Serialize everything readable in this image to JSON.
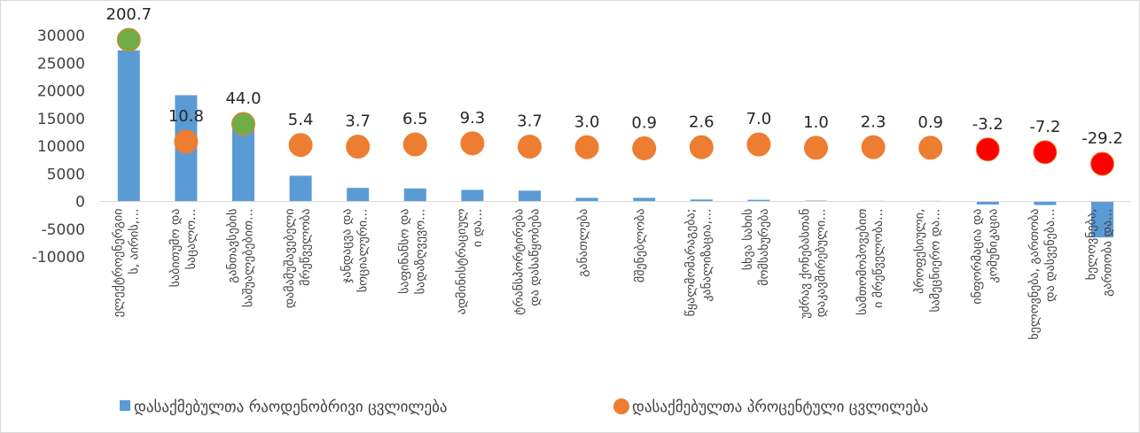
{
  "chart_data": {
    "type": "bar",
    "categories": [
      [
        "ელექტროენერგიი",
        "ს, აირის,..."
      ],
      [
        "საბითუმო და",
        "საცალო..."
      ],
      [
        "განთავსების",
        "საშუალებებით..."
      ],
      [
        "დამამუშავებელი",
        "მრეწველობა"
      ],
      [
        "ჯანდაცვა და",
        "სოციალური..."
      ],
      [
        "საფინანსო და",
        "სადაზღვევო..."
      ],
      [
        "ადმინისტრაციულ",
        "ი და..."
      ],
      [
        "ტრანსპორტირება",
        "და დასაწყობება"
      ],
      [
        "განათლება"
      ],
      [
        "მშენებლობა"
      ],
      [
        "წყალმომარაგება;",
        "კანალიზაცია,..."
      ],
      [
        "სხვა სახის",
        "მომსახურება"
      ],
      [
        "უძრავ ქონებასთან",
        "დაკავშირებული..."
      ],
      [
        "სამთომოპოვებით",
        "ი მრეწველობა..."
      ],
      [
        "პროფესიული,",
        "სამეცნიერო და..."
      ],
      [
        "ინფორმაცია და",
        "კომუნიკაცია"
      ],
      [
        "ხელოვნება, გართობა",
        "და დასვენება..."
      ],
      [
        "ხელოვნება,",
        "გართობა და..."
      ]
    ],
    "series": [
      {
        "name": "დასაქმებულთა რაოდენობრივი ცვლილება",
        "type": "bar",
        "color": "#5b9bd5",
        "values": [
          27300,
          19200,
          13900,
          4650,
          2450,
          2350,
          2100,
          1950,
          650,
          650,
          350,
          300,
          150,
          100,
          100,
          -550,
          -650,
          -6500
        ]
      },
      {
        "name": "დასაქმებულთა პროცენტული ცვლილება",
        "type": "scatter",
        "values": [
          200.7,
          10.8,
          44.0,
          5.4,
          3.7,
          6.5,
          9.3,
          3.7,
          3.0,
          0.9,
          2.6,
          7.0,
          1.0,
          2.3,
          0.9,
          -3.2,
          -7.2,
          -29.2
        ],
        "labels": [
          "200.7",
          "10.8",
          "44.0",
          "5.4",
          "3.7",
          "6.5",
          "9.3",
          "3.7",
          "3.0",
          "0.9",
          "2.6",
          "7.0",
          "1.0",
          "2.3",
          "0.9",
          "-3.2",
          "-7.2",
          "-29.2"
        ],
        "marker_y": [
          29200,
          10800,
          14000,
          10200,
          9900,
          10300,
          10500,
          9900,
          9800,
          9600,
          9800,
          10300,
          9700,
          9800,
          9700,
          9400,
          8900,
          6800
        ],
        "colors": [
          "#70ad47",
          "#ed7d31",
          "#70ad47",
          "#ed7d31",
          "#ed7d31",
          "#ed7d31",
          "#ed7d31",
          "#ed7d31",
          "#ed7d31",
          "#ed7d31",
          "#ed7d31",
          "#ed7d31",
          "#ed7d31",
          "#ed7d31",
          "#ed7d31",
          "#ff0000",
          "#ff0000",
          "#ff0000"
        ],
        "legend_color": "#ed7d31"
      }
    ],
    "y_ticks": [
      "30000",
      "25000",
      "20000",
      "15000",
      "10000",
      "5000",
      "0",
      "-5000",
      "-10000"
    ],
    "ylim": [
      -10000,
      30000
    ],
    "grid": false,
    "legend_position": "bottom",
    "title": "",
    "xlabel": "",
    "ylabel": ""
  }
}
